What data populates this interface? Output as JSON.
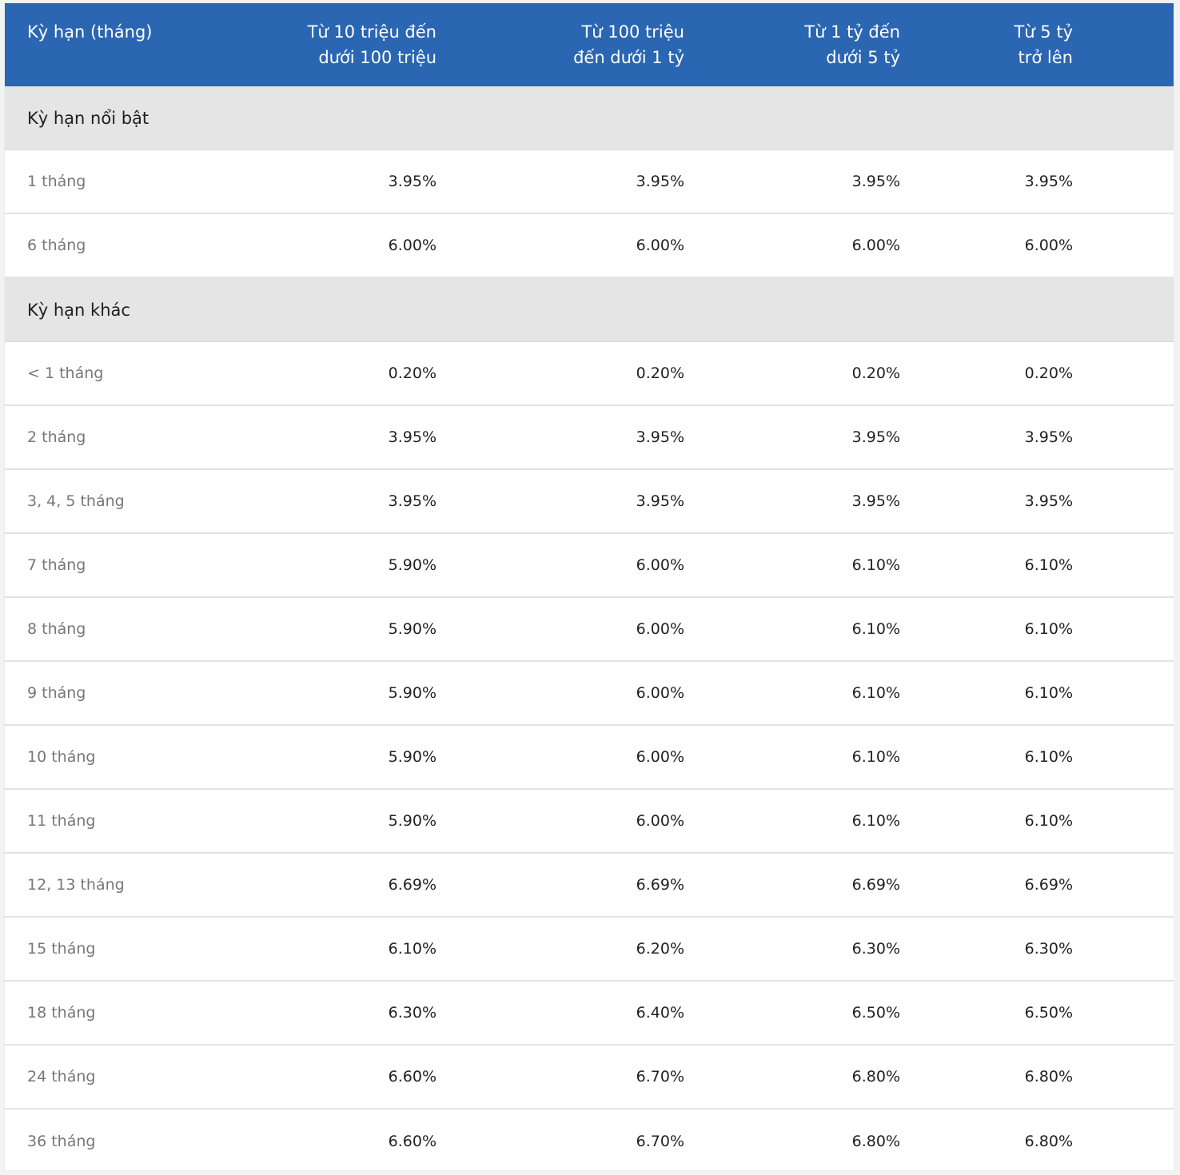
{
  "table": {
    "headers": [
      "Kỳ hạn (tháng)",
      "Từ 10 triệu đến\ndưới 100 triệu",
      "Từ 100 triệu\nđến dưới 1 tỷ",
      "Từ 1 tỷ đến\ndưới 5 tỷ",
      "Từ 5 tỷ\ntrở lên"
    ],
    "sections": [
      {
        "title": "Kỳ hạn nổi bật",
        "rows": [
          {
            "term": "1 tháng",
            "values": [
              "3.95%",
              "3.95%",
              "3.95%",
              "3.95%"
            ]
          },
          {
            "term": "6 tháng",
            "values": [
              "6.00%",
              "6.00%",
              "6.00%",
              "6.00%"
            ]
          }
        ]
      },
      {
        "title": "Kỳ hạn khác",
        "rows": [
          {
            "term": "< 1 tháng",
            "values": [
              "0.20%",
              "0.20%",
              "0.20%",
              "0.20%"
            ]
          },
          {
            "term": "2 tháng",
            "values": [
              "3.95%",
              "3.95%",
              "3.95%",
              "3.95%"
            ]
          },
          {
            "term": "3, 4, 5 tháng",
            "values": [
              "3.95%",
              "3.95%",
              "3.95%",
              "3.95%"
            ]
          },
          {
            "term": "7 tháng",
            "values": [
              "5.90%",
              "6.00%",
              "6.10%",
              "6.10%"
            ]
          },
          {
            "term": "8 tháng",
            "values": [
              "5.90%",
              "6.00%",
              "6.10%",
              "6.10%"
            ]
          },
          {
            "term": "9 tháng",
            "values": [
              "5.90%",
              "6.00%",
              "6.10%",
              "6.10%"
            ]
          },
          {
            "term": "10 tháng",
            "values": [
              "5.90%",
              "6.00%",
              "6.10%",
              "6.10%"
            ]
          },
          {
            "term": "11 tháng",
            "values": [
              "5.90%",
              "6.00%",
              "6.10%",
              "6.10%"
            ]
          },
          {
            "term": "12, 13 tháng",
            "values": [
              "6.69%",
              "6.69%",
              "6.69%",
              "6.69%"
            ]
          },
          {
            "term": "15 tháng",
            "values": [
              "6.10%",
              "6.20%",
              "6.30%",
              "6.30%"
            ]
          },
          {
            "term": "18 tháng",
            "values": [
              "6.30%",
              "6.40%",
              "6.50%",
              "6.50%"
            ]
          },
          {
            "term": "24 tháng",
            "values": [
              "6.60%",
              "6.70%",
              "6.80%",
              "6.80%"
            ]
          },
          {
            "term": "36 tháng",
            "values": [
              "6.60%",
              "6.70%",
              "6.80%",
              "6.80%"
            ]
          }
        ]
      }
    ]
  },
  "colors": {
    "header_bg": "#2a66b1",
    "section_bg": "#e5e5e5"
  }
}
